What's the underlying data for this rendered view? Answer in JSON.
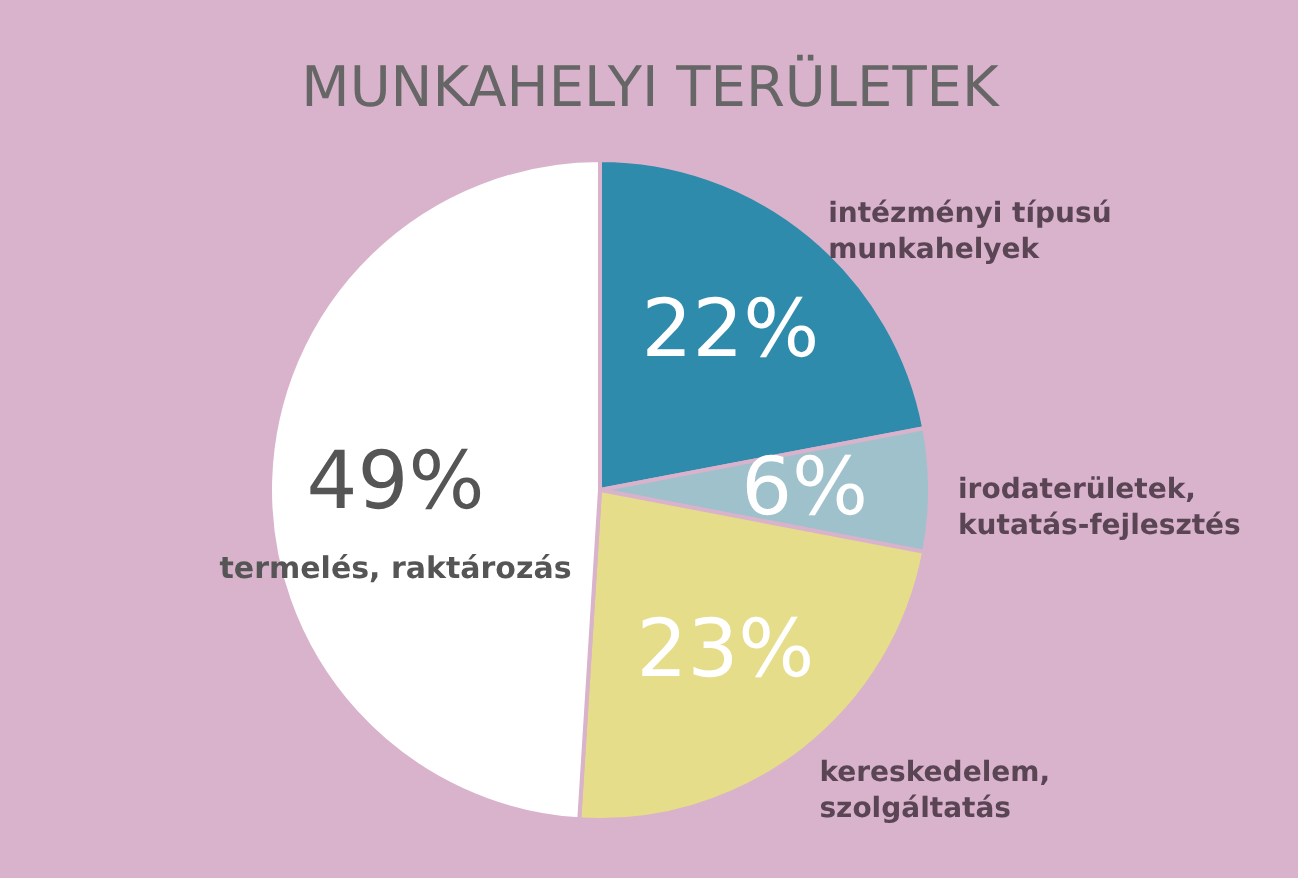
{
  "chart_data": {
    "type": "pie",
    "title": "MUNKAHELYI TERÜLETEK",
    "categories": [
      "intézményi típusú\nmunkahelyek",
      "irodaterületek,\nkutatás-fejlesztés",
      "kereskedelem,\nszolgáltatás",
      "termelés, raktározás"
    ],
    "values": [
      22,
      6,
      23,
      49
    ],
    "colors": [
      "#2e8bab",
      "#9fc1cc",
      "#e6dd8a",
      "#ffffff"
    ],
    "value_labels": [
      "22%",
      "6%",
      "23%",
      "49%"
    ],
    "legend": false
  }
}
